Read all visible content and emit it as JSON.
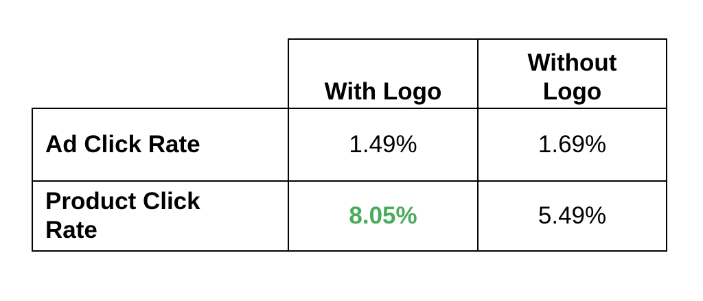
{
  "chart_data": {
    "type": "table",
    "columns": [
      "",
      "With Logo",
      "Without Logo"
    ],
    "rows": [
      {
        "label": "Ad Click Rate",
        "values": [
          "1.49%",
          "1.69%"
        ]
      },
      {
        "label": "Product Click Rate",
        "values": [
          "8.05%",
          "5.49%"
        ]
      }
    ],
    "highlight": {
      "row": 1,
      "col": 0,
      "color": "#4caa5c"
    }
  }
}
